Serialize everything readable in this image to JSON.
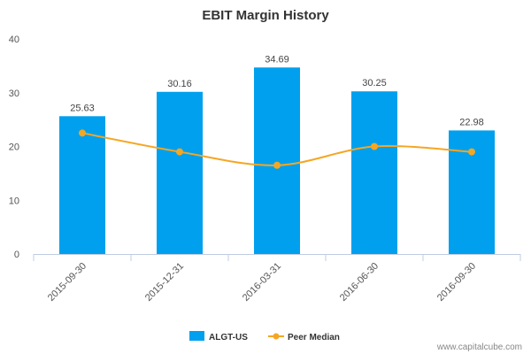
{
  "chart_data": {
    "type": "bar",
    "title": "EBIT Margin History",
    "categories": [
      "2015-09-30",
      "2015-12-31",
      "2016-03-31",
      "2016-06-30",
      "2016-09-30"
    ],
    "series": [
      {
        "name": "ALGT-US",
        "kind": "bar",
        "color": "#00a0ee",
        "values": [
          25.63,
          30.16,
          34.69,
          30.25,
          22.98
        ],
        "value_labels": [
          "25.63",
          "30.16",
          "34.69",
          "30.25",
          "22.98"
        ]
      },
      {
        "name": "Peer Median",
        "kind": "line",
        "color": "#f5a623",
        "values": [
          22.5,
          19.0,
          16.5,
          20.0,
          19.0
        ]
      }
    ],
    "ylim": [
      0,
      40
    ],
    "yticks": [
      "0",
      "10",
      "20",
      "30",
      "40"
    ],
    "xlabel": "",
    "ylabel": "",
    "grid": false,
    "legend_position": "bottom-center"
  },
  "watermark": "www.capitalcube.com"
}
